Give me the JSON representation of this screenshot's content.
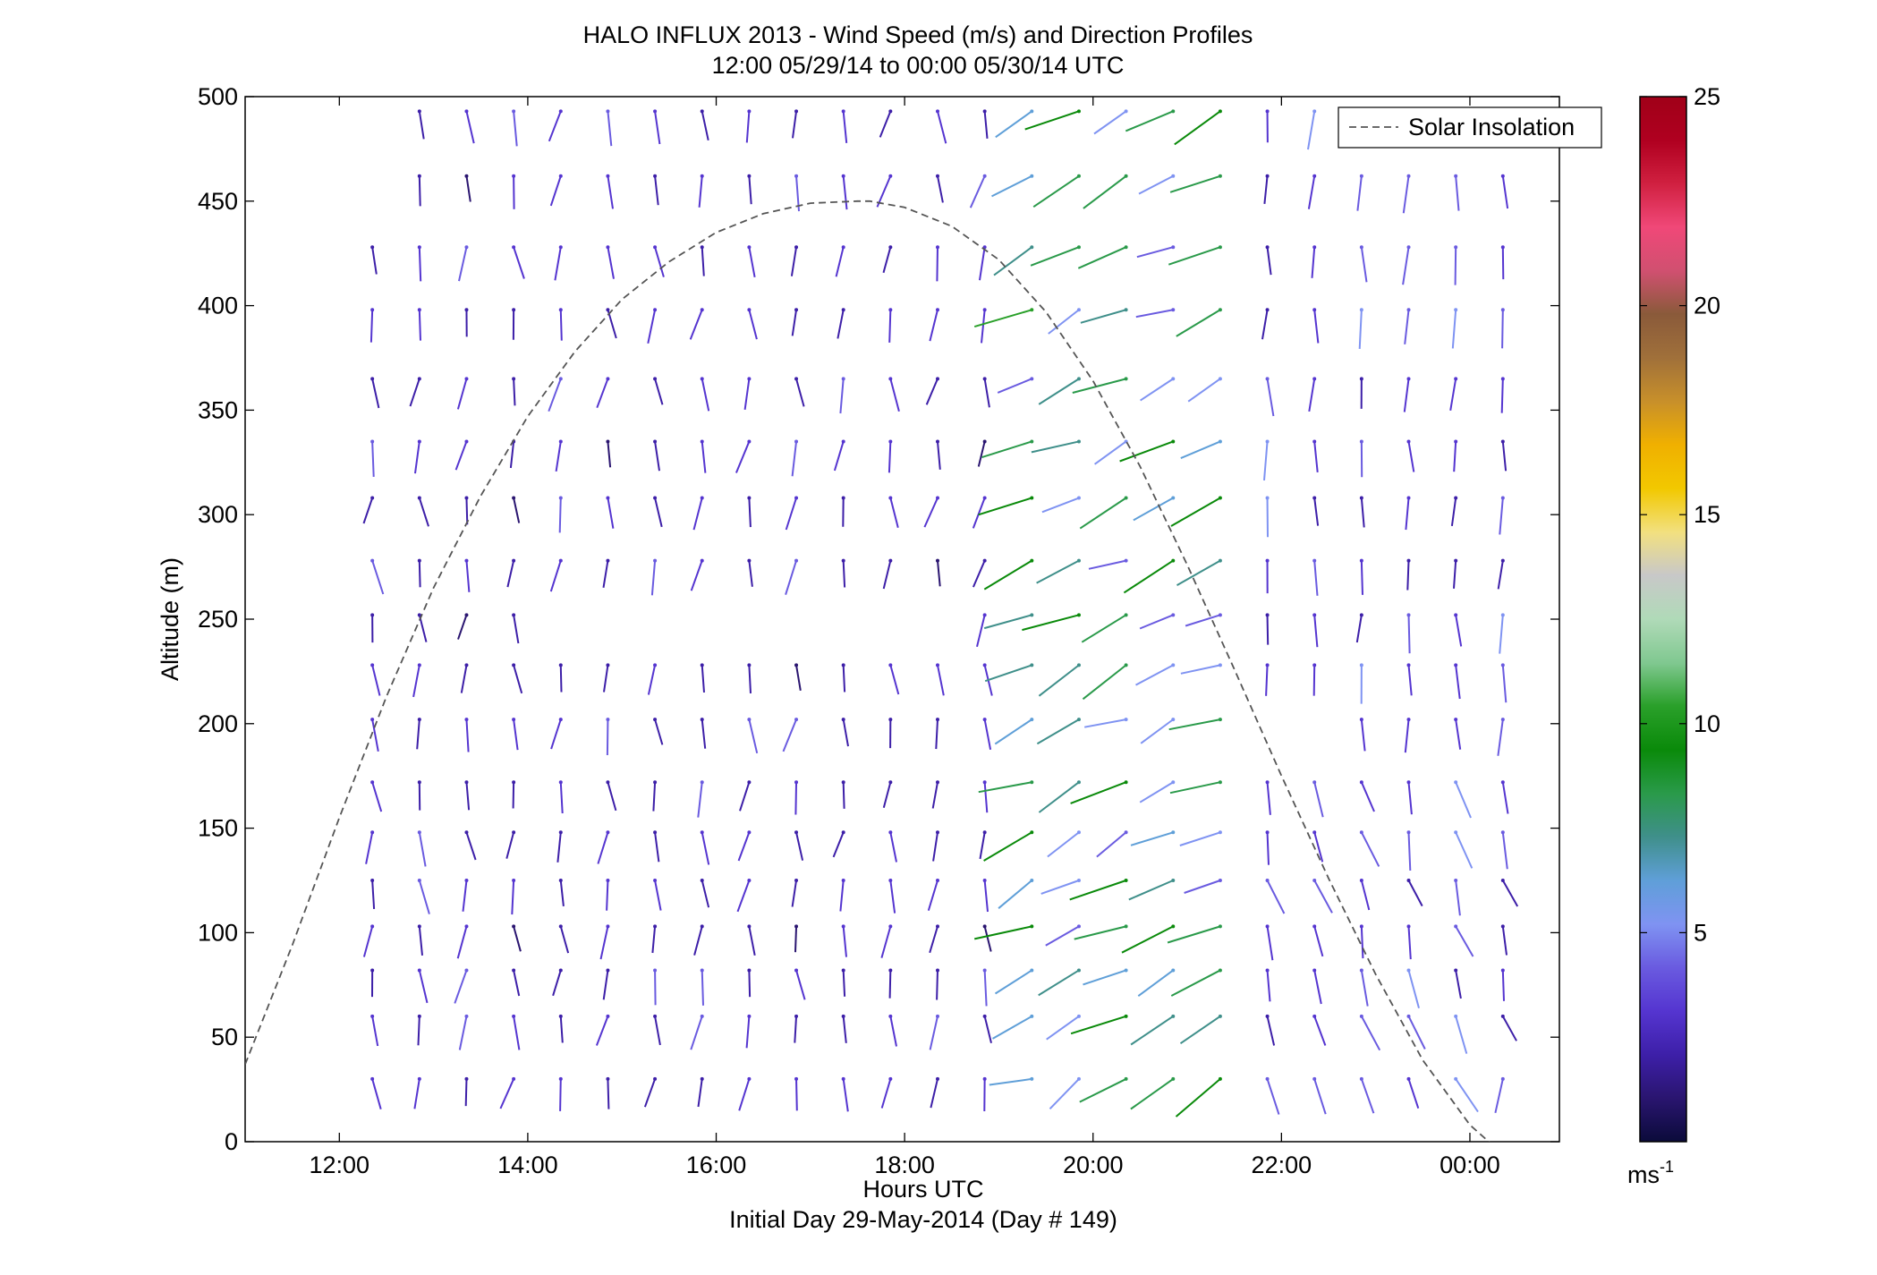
{
  "chart_data": {
    "type": "quiver",
    "title": [
      "HALO INFLUX 2013 - Wind Speed (m/s) and Direction Profiles",
      "12:00 05/29/14 to 00:00 05/30/14  UTC"
    ],
    "xlabel": "Hours UTC",
    "x_sublabel": "Initial Day 29-May-2014 (Day # 149)",
    "ylabel": "Altitude (m)",
    "xlim": [
      11.0,
      24.95
    ],
    "ylim": [
      0,
      500
    ],
    "x_ticks": [
      12,
      14,
      16,
      18,
      20,
      22,
      24
    ],
    "x_tick_labels": [
      "12:00",
      "14:00",
      "16:00",
      "18:00",
      "20:00",
      "22:00",
      "00:00"
    ],
    "y_ticks": [
      0,
      50,
      100,
      150,
      200,
      250,
      300,
      350,
      400,
      450,
      500
    ],
    "y_tick_labels": [
      "0",
      "50",
      "100",
      "150",
      "200",
      "250",
      "300",
      "350",
      "400",
      "450",
      "500"
    ],
    "legend": {
      "location": "top-right",
      "entries": [
        "Solar Insolation"
      ]
    },
    "colorbar": {
      "min": 0,
      "max": 25,
      "ticks": [
        5,
        10,
        15,
        20,
        25
      ],
      "tick_labels": [
        "5",
        "10",
        "15",
        "20",
        "25"
      ],
      "unit": "ms",
      "unit_exponent": "-1"
    },
    "colors": {
      "axis": "#000000",
      "solar_curve": "#555555",
      "colormap": [
        "#0b0b3a",
        "#2a1570",
        "#3d1fa8",
        "#5535d0",
        "#6a5be0",
        "#7f93f2",
        "#5f9fd8",
        "#3f8f8a",
        "#2a9a4a",
        "#0a8a0a",
        "#2aa02a",
        "#80c890",
        "#b0dab8",
        "#c8c8c8",
        "#f2e080",
        "#f2c800",
        "#f0b000",
        "#c8902a",
        "#a0703a",
        "#8a5a3a",
        "#d05070",
        "#f04878",
        "#d02040",
        "#b00020",
        "#a00018"
      ]
    },
    "solar_insolation": {
      "x": [
        11.0,
        11.5,
        12.0,
        12.5,
        13.0,
        13.5,
        14.0,
        14.5,
        15.0,
        15.5,
        16.0,
        16.5,
        17.0,
        17.5,
        17.63,
        18.0,
        18.5,
        19.0,
        19.5,
        20.0,
        20.5,
        21.0,
        21.5,
        22.0,
        22.5,
        23.0,
        23.5,
        24.0,
        24.5,
        24.75
      ],
      "y": [
        37,
        94,
        155,
        213,
        265,
        309,
        347,
        378,
        403,
        421,
        435,
        444,
        449,
        450,
        450,
        447,
        438,
        422,
        397,
        364,
        323,
        276,
        226,
        175,
        126,
        80,
        39,
        8,
        -12,
        -18
      ]
    },
    "wind_barbs": {
      "times": [
        12.35,
        12.85,
        13.35,
        13.85,
        14.35,
        14.85,
        15.35,
        15.85,
        16.35,
        16.85,
        17.35,
        17.85,
        18.35,
        18.85,
        19.35,
        19.85,
        20.35,
        20.85,
        21.35,
        21.85,
        22.35,
        22.85,
        23.35,
        23.85,
        24.35
      ],
      "altitudes": [
        30,
        60,
        82,
        103,
        125,
        148,
        172,
        202,
        228,
        252,
        278,
        308,
        335,
        365,
        398,
        428,
        462,
        493
      ],
      "dominant_direction_deg": [
        150,
        160,
        230,
        220,
        260,
        300
      ],
      "speed_range_ms": [
        0.5,
        10
      ]
    }
  }
}
